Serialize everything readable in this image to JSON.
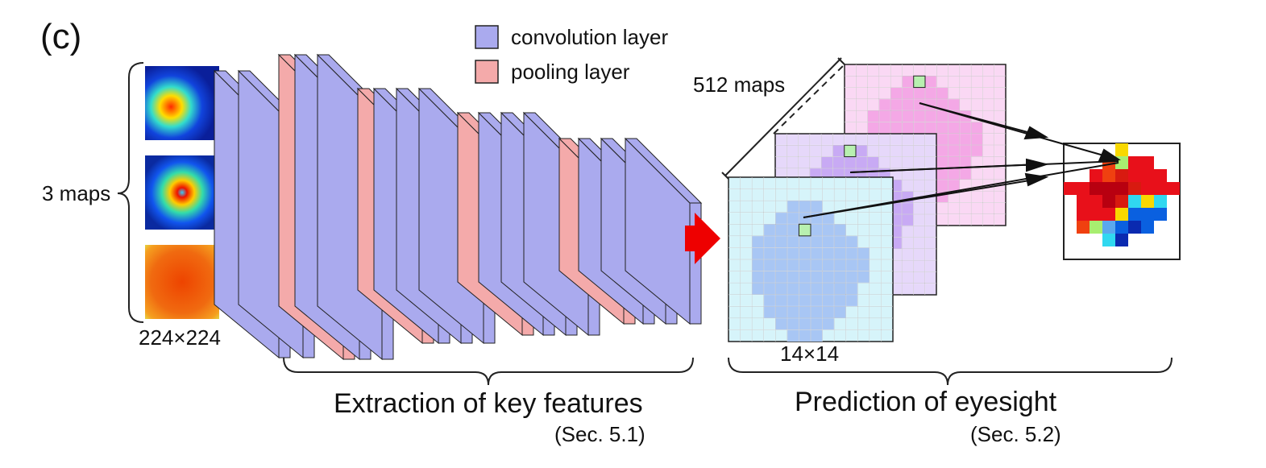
{
  "panel_label": "(c)",
  "legend": [
    {
      "label": "convolution layer",
      "color": "#aaaaee"
    },
    {
      "label": "pooling layer",
      "color": "#f4aaaa"
    }
  ],
  "input": {
    "maps_label": "3 maps",
    "size_label": "224×224"
  },
  "prediction": {
    "maps_label": "512 maps",
    "size_label": "14×14",
    "grid_cells": 14,
    "map_colors": [
      "#d6f4fa",
      "#e6d8fa",
      "#fad8f4"
    ],
    "mask_colors": [
      "#a8c6f4",
      "#c8aaf4",
      "#f4a8e6"
    ],
    "highlight_color": "#b8f0b0"
  },
  "sections": [
    {
      "title": "Extraction of key features",
      "ref": "(Sec. 5.1)"
    },
    {
      "title": "Prediction of eyesight",
      "ref": "(Sec. 5.2)"
    }
  ],
  "colors": {
    "conv": "#aaaaee",
    "conv_dark": "#8f8fd8",
    "pool": "#f4aaaa",
    "arrow": "#ee0000",
    "outline": "#222222"
  }
}
